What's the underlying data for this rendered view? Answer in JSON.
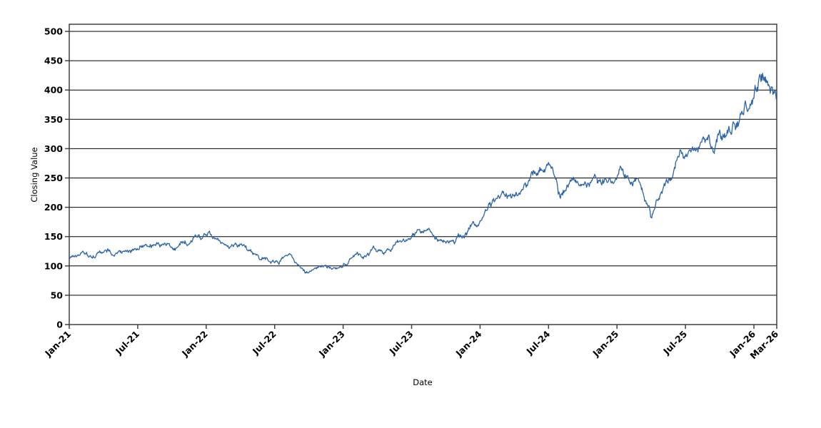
{
  "chart_data": {
    "type": "line",
    "title": "",
    "xlabel": "Date",
    "ylabel": "Closing Value",
    "ylim": [
      0,
      510
    ],
    "yticks": [
      0,
      50,
      100,
      150,
      200,
      250,
      300,
      350,
      400,
      450,
      500
    ],
    "x_ticks": [
      {
        "label": "Jan-21",
        "month_index": 0
      },
      {
        "label": "Jul-21",
        "month_index": 6
      },
      {
        "label": "Jan-22",
        "month_index": 12
      },
      {
        "label": "Jul-22",
        "month_index": 18
      },
      {
        "label": "Jan-23",
        "month_index": 24
      },
      {
        "label": "Jul-23",
        "month_index": 30
      },
      {
        "label": "Jan-24",
        "month_index": 36
      },
      {
        "label": "Jul-24",
        "month_index": 42
      },
      {
        "label": "Jan-25",
        "month_index": 48
      },
      {
        "label": "Jul-25",
        "month_index": 54
      },
      {
        "label": "Jan-26",
        "month_index": 60
      },
      {
        "label": "Mar-26",
        "month_index": 62
      }
    ],
    "grid": "horizontal-only",
    "legend": "none",
    "granularity": "daily (noisy trading-day series shown; monthly anchor values read from plot)",
    "series": [
      {
        "name": "Closing Value",
        "color": "#2d64a8",
        "months": [
          "Jan-21",
          "Feb-21",
          "Mar-21",
          "Apr-21",
          "May-21",
          "Jun-21",
          "Jul-21",
          "Aug-21",
          "Sep-21",
          "Oct-21",
          "Nov-21",
          "Dec-21",
          "Jan-22",
          "Feb-22",
          "Mar-22",
          "Apr-22",
          "May-22",
          "Jun-22",
          "Jul-22",
          "Aug-22",
          "Sep-22",
          "Oct-22",
          "Nov-22",
          "Dec-22",
          "Jan-23",
          "Feb-23",
          "Mar-23",
          "Apr-23",
          "May-23",
          "Jun-23",
          "Jul-23",
          "Aug-23",
          "Sep-23",
          "Oct-23",
          "Nov-23",
          "Dec-23",
          "Jan-24",
          "Feb-24",
          "Mar-24",
          "Apr-24",
          "May-24",
          "Jun-24",
          "Jul-24",
          "Aug-24",
          "Sep-24",
          "Oct-24",
          "Nov-24",
          "Dec-24",
          "Jan-25",
          "Feb-25",
          "Mar-25",
          "Apr-25",
          "May-25",
          "Jun-25",
          "Jul-25",
          "Aug-25",
          "Sep-25",
          "Oct-25",
          "Nov-25",
          "Dec-25",
          "Jan-26",
          "Feb-26",
          "Mar-26"
        ],
        "monthly_values": [
          114,
          121,
          114,
          123,
          119,
          125,
          129,
          132,
          136,
          131,
          141,
          150,
          154,
          146,
          130,
          136,
          124,
          114,
          106,
          118,
          102,
          88,
          100,
          95,
          101,
          118,
          116,
          124,
          128,
          144,
          151,
          156,
          149,
          140,
          150,
          164,
          178,
          205,
          225,
          218,
          238,
          258,
          276,
          216,
          247,
          238,
          252,
          246,
          252,
          248,
          244,
          182,
          228,
          262,
          286,
          300,
          322,
          332,
          326,
          358,
          388,
          420,
          385
        ],
        "observed_extremes": {
          "low": {
            "month": "Oct-22",
            "value": 88
          },
          "high": {
            "month": "Feb-26",
            "value": 425
          },
          "jul24_peak": 280,
          "jul24_trough": 207,
          "apr25_trough": 178
        }
      }
    ],
    "colors": {
      "series": "#2d64a8",
      "gridline": "#000000",
      "plot_border": "#404040",
      "tick_text": "#000000",
      "background": "#ffffff"
    }
  }
}
